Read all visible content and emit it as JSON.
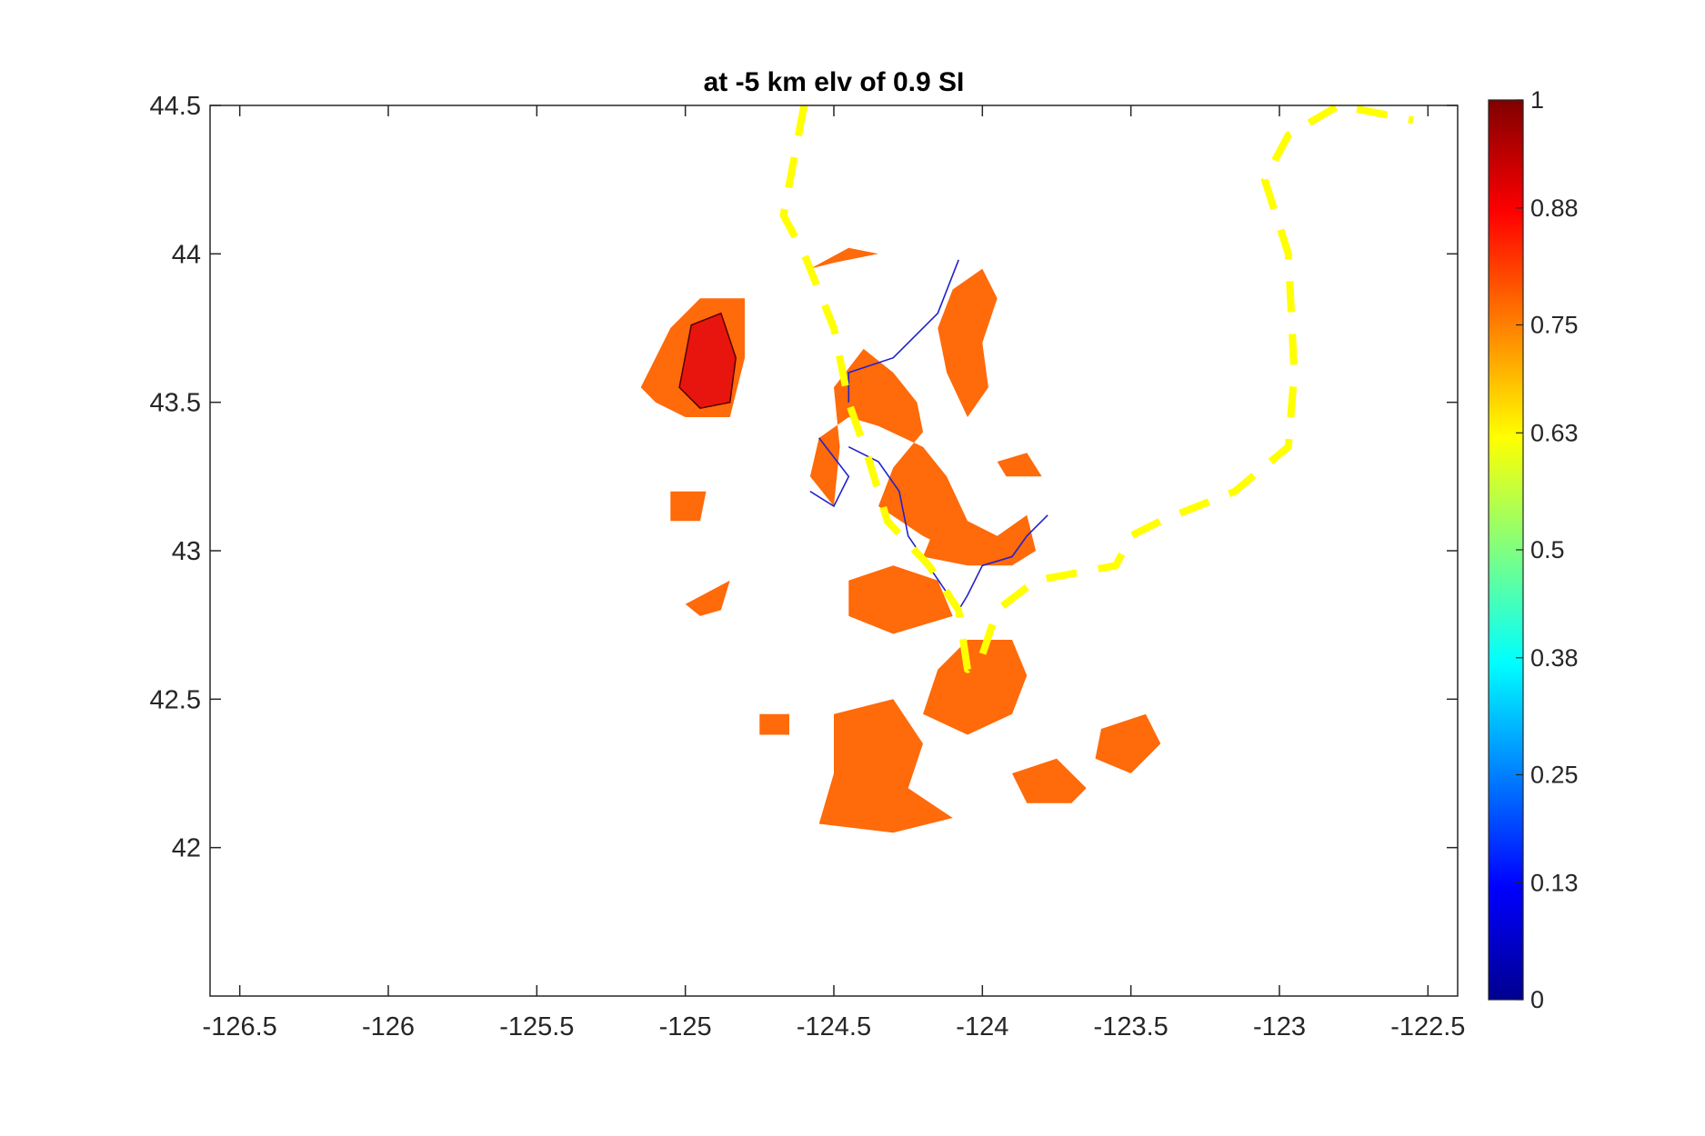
{
  "chart_data": {
    "type": "heatmap",
    "title": "at -5 km elv of 0.9 SI",
    "xlabel": "",
    "ylabel": "",
    "xlim": [
      -126.6,
      -122.4
    ],
    "ylim": [
      41.5,
      44.5
    ],
    "x_ticks": [
      -126.5,
      -126,
      -125.5,
      -125,
      -124.5,
      -124,
      -123.5,
      -123,
      -122.5
    ],
    "x_tick_labels": [
      "-126.5",
      "-126",
      "-125.5",
      "-125",
      "-124.5",
      "-124",
      "-123.5",
      "-123",
      "-122.5"
    ],
    "y_ticks": [
      42,
      42.5,
      43,
      43.5,
      44,
      44.5
    ],
    "y_tick_labels": [
      "42",
      "42.5",
      "43",
      "43.5",
      "44",
      "44.5"
    ],
    "grid": false,
    "colorbar": {
      "colormap": "jet",
      "range": [
        0,
        1
      ],
      "ticks": [
        0,
        0.13,
        0.25,
        0.38,
        0.5,
        0.63,
        0.75,
        0.88,
        1
      ],
      "tick_labels": [
        "0",
        "0.13",
        "0.25",
        "0.38",
        "0.5",
        "0.63",
        "0.75",
        "0.88",
        "1"
      ]
    },
    "fill_colors": {
      "low_level": "#ff6a0a",
      "high_level": "#e8150f",
      "contour_line": "#550000"
    },
    "regions": [
      {
        "level": 0.8,
        "polygon": [
          [
            -125.15,
            43.55
          ],
          [
            -125.05,
            43.75
          ],
          [
            -124.95,
            43.85
          ],
          [
            -124.8,
            43.85
          ],
          [
            -124.8,
            43.65
          ],
          [
            -124.85,
            43.45
          ],
          [
            -125.0,
            43.45
          ],
          [
            -125.1,
            43.5
          ]
        ]
      },
      {
        "level": 0.9,
        "polygon": [
          [
            -125.02,
            43.55
          ],
          [
            -124.98,
            43.76
          ],
          [
            -124.88,
            43.8
          ],
          [
            -124.83,
            43.65
          ],
          [
            -124.85,
            43.5
          ],
          [
            -124.95,
            43.48
          ]
        ]
      },
      {
        "level": 0.8,
        "polygon": [
          [
            -124.58,
            43.95
          ],
          [
            -124.45,
            44.02
          ],
          [
            -124.35,
            44.0
          ],
          [
            -124.5,
            43.97
          ]
        ]
      },
      {
        "level": 0.8,
        "polygon": [
          [
            -124.5,
            43.55
          ],
          [
            -124.4,
            43.68
          ],
          [
            -124.3,
            43.6
          ],
          [
            -124.22,
            43.5
          ],
          [
            -124.2,
            43.4
          ],
          [
            -124.3,
            43.28
          ],
          [
            -124.35,
            43.15
          ],
          [
            -124.2,
            43.05
          ],
          [
            -124.1,
            43.0
          ],
          [
            -124.05,
            43.1
          ],
          [
            -124.12,
            43.25
          ],
          [
            -124.2,
            43.35
          ],
          [
            -124.35,
            43.42
          ],
          [
            -124.45,
            43.45
          ],
          [
            -124.55,
            43.38
          ],
          [
            -124.58,
            43.25
          ],
          [
            -124.5,
            43.15
          ],
          [
            -124.48,
            43.35
          ]
        ]
      },
      {
        "level": 0.8,
        "polygon": [
          [
            -124.1,
            43.88
          ],
          [
            -124.0,
            43.95
          ],
          [
            -123.95,
            43.85
          ],
          [
            -124.0,
            43.7
          ],
          [
            -123.98,
            43.55
          ],
          [
            -124.05,
            43.45
          ],
          [
            -124.12,
            43.6
          ],
          [
            -124.15,
            43.75
          ]
        ]
      },
      {
        "level": 0.8,
        "polygon": [
          [
            -124.15,
            43.1
          ],
          [
            -124.05,
            43.1
          ],
          [
            -123.95,
            43.05
          ],
          [
            -123.85,
            43.12
          ],
          [
            -123.82,
            43.0
          ],
          [
            -123.9,
            42.95
          ],
          [
            -124.05,
            42.95
          ],
          [
            -124.2,
            42.98
          ]
        ]
      },
      {
        "level": 0.8,
        "polygon": [
          [
            -123.95,
            43.3
          ],
          [
            -123.85,
            43.33
          ],
          [
            -123.8,
            43.25
          ],
          [
            -123.92,
            43.25
          ]
        ]
      },
      {
        "level": 0.8,
        "polygon": [
          [
            -125.05,
            43.2
          ],
          [
            -124.93,
            43.2
          ],
          [
            -124.95,
            43.1
          ],
          [
            -125.05,
            43.1
          ]
        ]
      },
      {
        "level": 0.8,
        "polygon": [
          [
            -125.0,
            42.82
          ],
          [
            -124.85,
            42.9
          ],
          [
            -124.88,
            42.8
          ],
          [
            -124.95,
            42.78
          ]
        ]
      },
      {
        "level": 0.8,
        "polygon": [
          [
            -124.45,
            42.9
          ],
          [
            -124.3,
            42.95
          ],
          [
            -124.15,
            42.9
          ],
          [
            -124.1,
            42.78
          ],
          [
            -124.3,
            42.72
          ],
          [
            -124.45,
            42.78
          ]
        ]
      },
      {
        "level": 0.8,
        "polygon": [
          [
            -124.05,
            42.7
          ],
          [
            -123.9,
            42.7
          ],
          [
            -123.85,
            42.58
          ],
          [
            -123.9,
            42.45
          ],
          [
            -124.05,
            42.38
          ],
          [
            -124.2,
            42.45
          ],
          [
            -124.15,
            42.6
          ]
        ]
      },
      {
        "level": 0.8,
        "polygon": [
          [
            -124.5,
            42.45
          ],
          [
            -124.3,
            42.5
          ],
          [
            -124.2,
            42.35
          ],
          [
            -124.25,
            42.2
          ],
          [
            -124.1,
            42.1
          ],
          [
            -124.3,
            42.05
          ],
          [
            -124.55,
            42.08
          ],
          [
            -124.5,
            42.25
          ]
        ]
      },
      {
        "level": 0.8,
        "polygon": [
          [
            -124.75,
            42.45
          ],
          [
            -124.65,
            42.45
          ],
          [
            -124.65,
            42.38
          ],
          [
            -124.75,
            42.38
          ]
        ]
      },
      {
        "level": 0.8,
        "polygon": [
          [
            -123.9,
            42.25
          ],
          [
            -123.75,
            42.3
          ],
          [
            -123.65,
            42.2
          ],
          [
            -123.7,
            42.15
          ],
          [
            -123.85,
            42.15
          ]
        ]
      },
      {
        "level": 0.8,
        "polygon": [
          [
            -123.6,
            42.4
          ],
          [
            -123.45,
            42.45
          ],
          [
            -123.4,
            42.35
          ],
          [
            -123.5,
            42.25
          ],
          [
            -123.62,
            42.3
          ]
        ]
      }
    ],
    "contours": [
      {
        "level": 0.95,
        "points": [
          [
            -124.08,
            43.98
          ],
          [
            -124.15,
            43.8
          ],
          [
            -124.3,
            43.65
          ],
          [
            -124.45,
            43.6
          ],
          [
            -124.45,
            43.5
          ]
        ]
      },
      {
        "level": 0.95,
        "points": [
          [
            -124.55,
            43.38
          ],
          [
            -124.45,
            43.25
          ],
          [
            -124.5,
            43.15
          ],
          [
            -124.58,
            43.2
          ]
        ]
      },
      {
        "level": 0.95,
        "points": [
          [
            -124.45,
            43.35
          ],
          [
            -124.35,
            43.3
          ],
          [
            -124.28,
            43.2
          ],
          [
            -124.25,
            43.05
          ],
          [
            -124.08,
            42.8
          ],
          [
            -124.05,
            42.85
          ],
          [
            -124.0,
            42.95
          ],
          [
            -123.9,
            42.98
          ],
          [
            -123.85,
            43.05
          ],
          [
            -123.78,
            43.12
          ]
        ]
      }
    ],
    "overlay_lines": [
      {
        "style": "dashed-yellow",
        "points": [
          [
            -124.6,
            44.5
          ],
          [
            -124.67,
            44.13
          ],
          [
            -124.6,
            44.0
          ],
          [
            -124.5,
            43.75
          ],
          [
            -124.45,
            43.5
          ],
          [
            -124.38,
            43.3
          ],
          [
            -124.32,
            43.1
          ],
          [
            -124.18,
            42.95
          ],
          [
            -124.08,
            42.8
          ],
          [
            -124.05,
            42.6
          ],
          [
            -124.0,
            42.65
          ],
          [
            -123.95,
            42.8
          ],
          [
            -123.82,
            42.9
          ],
          [
            -123.55,
            42.95
          ],
          [
            -123.5,
            43.05
          ],
          [
            -123.4,
            43.1
          ],
          [
            -123.15,
            43.2
          ],
          [
            -122.97,
            43.35
          ],
          [
            -122.95,
            43.6
          ],
          [
            -122.97,
            44.0
          ],
          [
            -123.05,
            44.25
          ],
          [
            -122.97,
            44.4
          ],
          [
            -122.8,
            44.5
          ],
          [
            -122.55,
            44.45
          ]
        ]
      }
    ]
  }
}
